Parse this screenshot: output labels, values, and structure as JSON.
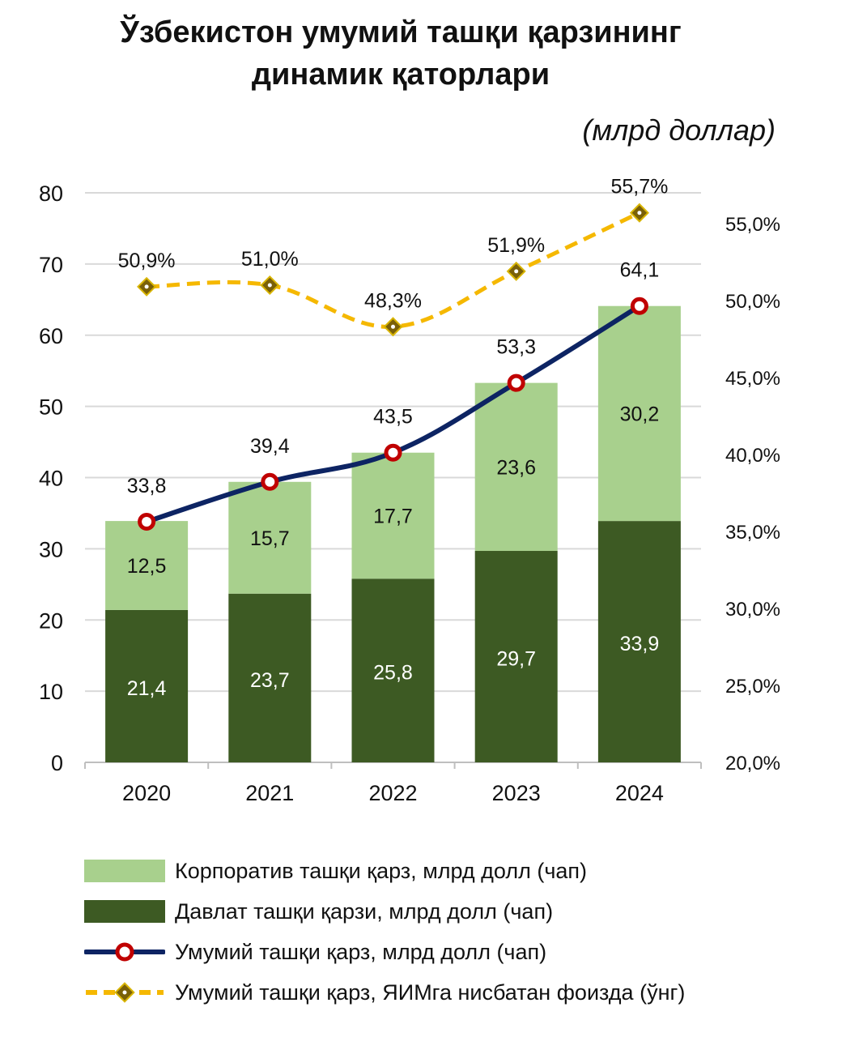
{
  "chart_data": {
    "type": "bar",
    "stacked": true,
    "title_line1": "Ўзбекистон умумий ташқи қарзининг",
    "title_line2": "динамик қаторлари",
    "unit_label": "(млрд доллар)",
    "categories": [
      "2020",
      "2021",
      "2022",
      "2023",
      "2024"
    ],
    "y_left": {
      "min": 0,
      "max": 80,
      "ticks": [
        0,
        10,
        20,
        30,
        40,
        50,
        60,
        70,
        80
      ]
    },
    "y_right": {
      "min": 20.0,
      "max": 57.0,
      "ticks": [
        "20,0%",
        "25,0%",
        "30,0%",
        "35,0%",
        "40,0%",
        "45,0%",
        "50,0%",
        "55,0%"
      ],
      "tick_values": [
        20,
        25,
        30,
        35,
        40,
        45,
        50,
        55
      ]
    },
    "series": [
      {
        "name": "Давлат ташқи қарзи, млрд долл (чап)",
        "kind": "bar",
        "color": "#3d5a23",
        "values": [
          21.4,
          23.7,
          25.8,
          29.7,
          33.9
        ],
        "labels": [
          "21,4",
          "23,7",
          "25,8",
          "29,7",
          "33,9"
        ]
      },
      {
        "name": "Корпоратив ташқи қарз, млрд долл (чап)",
        "kind": "bar",
        "color": "#a8d08d",
        "values": [
          12.5,
          15.7,
          17.7,
          23.6,
          30.2
        ],
        "labels": [
          "12,5",
          "15,7",
          "17,7",
          "23,6",
          "30,2"
        ]
      },
      {
        "name": "Умумий ташқи қарз, млрд долл (чап)",
        "kind": "line",
        "color": "#0d2463",
        "marker_color": "#c00000",
        "values": [
          33.8,
          39.4,
          43.5,
          53.3,
          64.1
        ],
        "labels": [
          "33,8",
          "39,4",
          "43,5",
          "53,3",
          "64,1"
        ]
      },
      {
        "name": "Умумий ташқи қарз, ЯИМга нисбатан фоизда (ўнг)",
        "kind": "line-dashed",
        "color": "#f5b800",
        "marker_color": "#7a6008",
        "values": [
          50.9,
          51.0,
          48.3,
          51.9,
          55.7
        ],
        "labels": [
          "50,9%",
          "51,0%",
          "48,3%",
          "51,9%",
          "55,7%"
        ]
      }
    ],
    "legend": [
      "Корпоратив ташқи қарз, млрд долл (чап)",
      "Давлат ташқи қарзи, млрд долл (чап)",
      "Умумий ташқи қарз, млрд долл (чап)",
      "Умумий ташқи қарз, ЯИМга нисбатан фоизда (ўнг)"
    ]
  }
}
